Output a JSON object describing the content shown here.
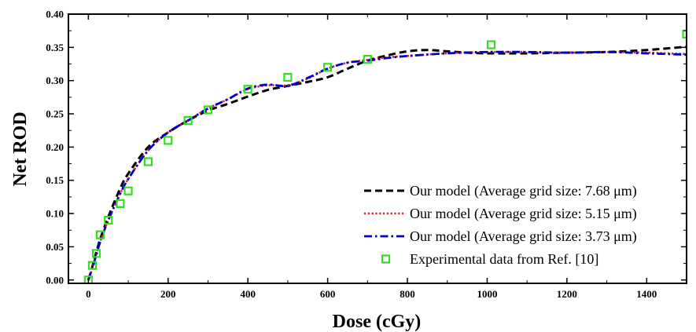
{
  "chart_data": {
    "type": "line",
    "title": "",
    "xlabel": "Dose (cGy)",
    "ylabel": "Net ROD",
    "xlim": [
      -50,
      1500
    ],
    "ylim": [
      -0.005,
      0.4
    ],
    "x_ticks": [
      0,
      200,
      400,
      600,
      800,
      1000,
      1200,
      1400
    ],
    "x_tick_labels": [
      "0",
      "200",
      "400",
      "600",
      "800",
      "1000",
      "1200",
      "1400"
    ],
    "y_ticks": [
      0.0,
      0.05,
      0.1,
      0.15,
      0.2,
      0.25,
      0.3,
      0.35,
      0.4
    ],
    "y_tick_labels": [
      "0.00",
      "0.05",
      "0.10",
      "0.15",
      "0.20",
      "0.25",
      "0.30",
      "0.35",
      "0.40"
    ],
    "grid": false,
    "legend_position": "bottom-right",
    "series": [
      {
        "name": "Our model (Average grid size: 7.68 μm)",
        "style": "dashed",
        "color": "#000000",
        "x": [
          0,
          10,
          20,
          30,
          50,
          80,
          100,
          150,
          200,
          250,
          300,
          350,
          400,
          450,
          500,
          550,
          600,
          650,
          700,
          750,
          800,
          850,
          900,
          950,
          1000,
          1100,
          1200,
          1300,
          1400,
          1500
        ],
        "y": [
          0.0,
          0.02,
          0.042,
          0.062,
          0.095,
          0.138,
          0.16,
          0.2,
          0.222,
          0.24,
          0.255,
          0.265,
          0.276,
          0.286,
          0.292,
          0.298,
          0.305,
          0.318,
          0.33,
          0.338,
          0.344,
          0.346,
          0.344,
          0.342,
          0.341,
          0.341,
          0.342,
          0.343,
          0.346,
          0.351
        ]
      },
      {
        "name": "Our model (Average grid size: 5.15 μm)",
        "style": "dotted",
        "color": "#e41a1c",
        "x": [
          0,
          10,
          20,
          30,
          50,
          80,
          100,
          150,
          200,
          250,
          300,
          350,
          400,
          450,
          500,
          550,
          600,
          650,
          700,
          750,
          800,
          900,
          1000,
          1100,
          1200,
          1300,
          1400,
          1500
        ],
        "y": [
          0.0,
          0.018,
          0.038,
          0.058,
          0.09,
          0.13,
          0.152,
          0.195,
          0.222,
          0.24,
          0.258,
          0.272,
          0.287,
          0.293,
          0.293,
          0.303,
          0.318,
          0.327,
          0.331,
          0.335,
          0.337,
          0.341,
          0.343,
          0.343,
          0.342,
          0.343,
          0.342,
          0.34
        ]
      },
      {
        "name": "Our model (Average grid size: 3.73 μm)",
        "style": "dashdot",
        "color": "#0000cc",
        "x": [
          0,
          10,
          20,
          30,
          50,
          80,
          100,
          150,
          200,
          250,
          300,
          350,
          400,
          450,
          500,
          550,
          600,
          650,
          700,
          750,
          800,
          900,
          1000,
          1100,
          1200,
          1300,
          1400,
          1500
        ],
        "y": [
          0.0,
          0.018,
          0.038,
          0.058,
          0.09,
          0.13,
          0.152,
          0.195,
          0.222,
          0.24,
          0.258,
          0.272,
          0.288,
          0.294,
          0.292,
          0.304,
          0.318,
          0.327,
          0.33,
          0.334,
          0.337,
          0.341,
          0.343,
          0.343,
          0.342,
          0.343,
          0.341,
          0.339
        ]
      },
      {
        "name": "Experimental data from Ref. [10]",
        "style": "markers",
        "marker": "open-square",
        "color": "#33dd22",
        "x": [
          0,
          10,
          20,
          30,
          50,
          80,
          100,
          150,
          200,
          250,
          300,
          400,
          500,
          600,
          700,
          1010,
          1500
        ],
        "y": [
          0.0,
          0.022,
          0.04,
          0.068,
          0.09,
          0.115,
          0.134,
          0.178,
          0.21,
          0.24,
          0.256,
          0.287,
          0.305,
          0.32,
          0.332,
          0.354,
          0.37
        ]
      }
    ]
  }
}
